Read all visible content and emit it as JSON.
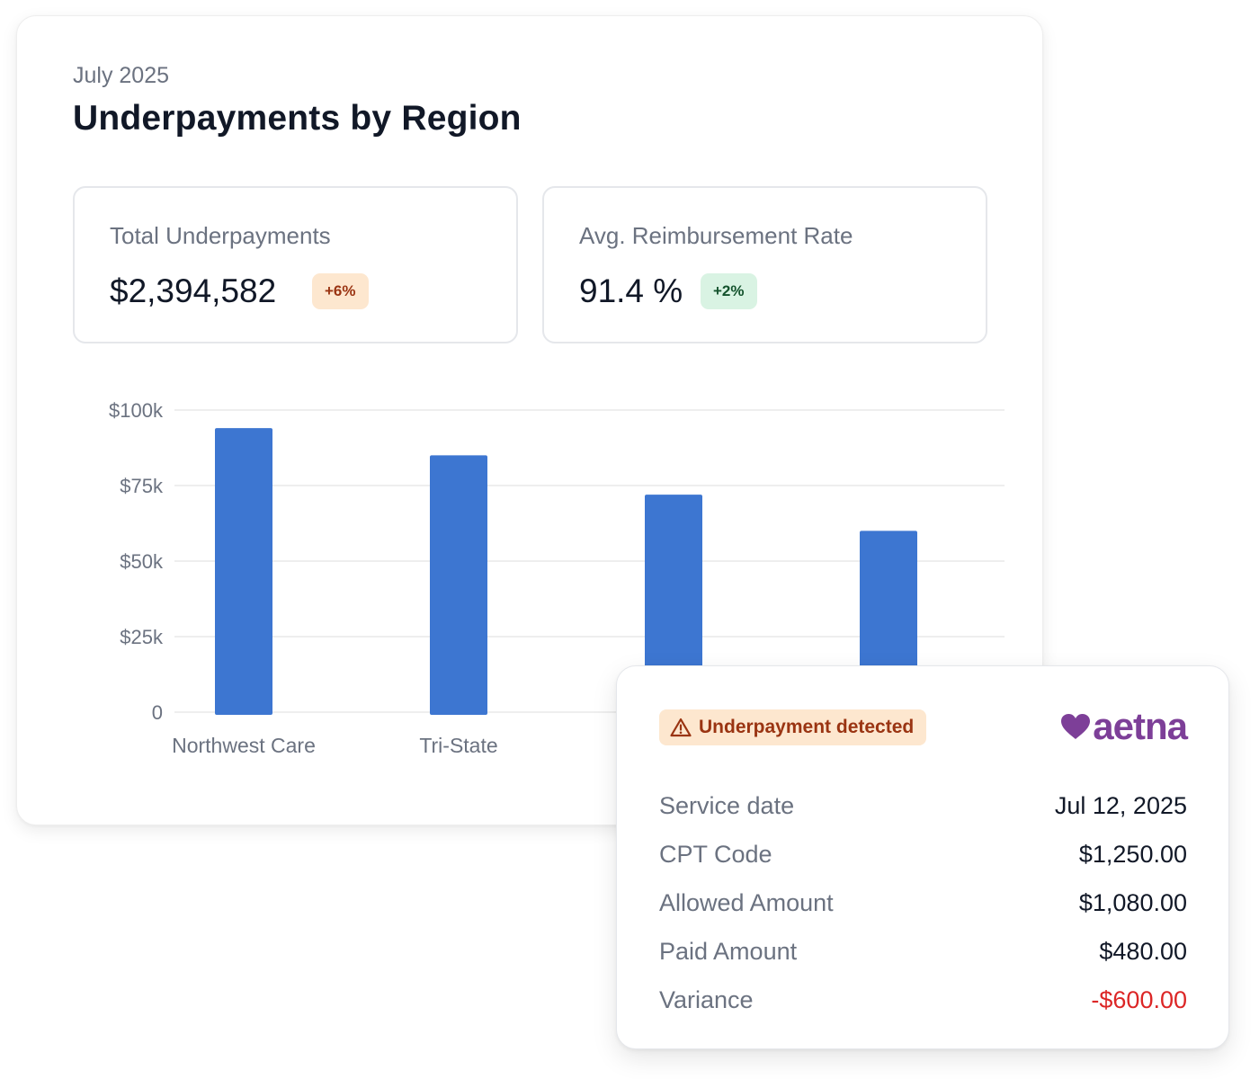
{
  "header": {
    "period": "July 2025",
    "title": "Underpayments by Region"
  },
  "kpis": [
    {
      "label": "Total Underpayments",
      "value": "$2,394,582",
      "change": "+6%"
    },
    {
      "label": "Avg. Reimbursement Rate",
      "value": "91.4 %",
      "change": "+2%"
    }
  ],
  "chart_data": {
    "type": "bar",
    "categories": [
      "Northwest Care",
      "Tri-State",
      "",
      ""
    ],
    "values": [
      94000,
      85000,
      72000,
      60000
    ],
    "ylim": [
      0,
      100000
    ],
    "yticks": [
      0,
      25000,
      50000,
      75000,
      100000
    ],
    "ytick_labels": [
      "0",
      "$25k",
      "$50k",
      "$75k",
      "$100k"
    ],
    "bar_color": "#3d76d1",
    "grid": true
  },
  "detail": {
    "alert": "Underpayment detected",
    "payer": "aetna",
    "rows": [
      {
        "label": "Service date",
        "value": "Jul 12, 2025"
      },
      {
        "label": "CPT Code",
        "value": "$1,250.00"
      },
      {
        "label": "Allowed Amount",
        "value": "$1,080.00"
      },
      {
        "label": "Paid Amount",
        "value": "$480.00"
      },
      {
        "label": "Variance",
        "value": "-$600.00"
      }
    ]
  },
  "colors": {
    "accent": "#3d76d1",
    "brand": "#7d3f98",
    "warning_bg": "#fde7cf",
    "warning_text": "#9a3412",
    "success_bg": "#d9f3e3",
    "success_text": "#14532d",
    "negative": "#dc2626"
  },
  "icons": {
    "alert": "warning-triangle-icon",
    "logo": "heart-icon"
  }
}
